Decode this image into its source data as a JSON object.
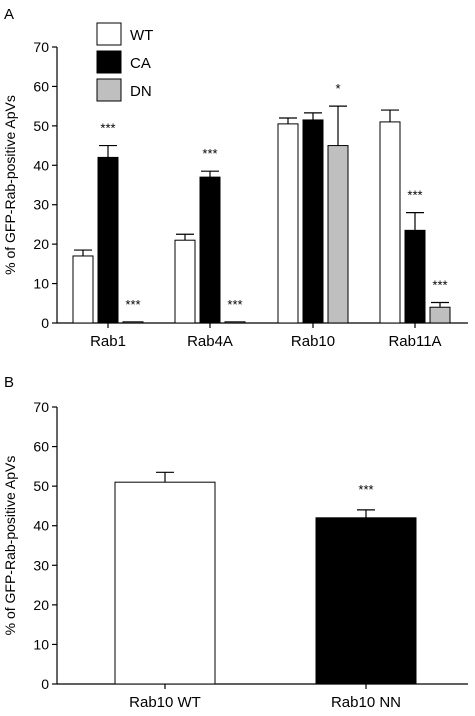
{
  "chart_data": [
    {
      "type": "bar",
      "panel": "A",
      "ylabel": "% of GFP-Rab-positive ApVs",
      "ylim": [
        0,
        70
      ],
      "yticks": [
        0,
        10,
        20,
        30,
        40,
        50,
        60,
        70
      ],
      "categories": [
        "Rab1",
        "Rab4A",
        "Rab10",
        "Rab11A"
      ],
      "legend_position": "top-left",
      "series": [
        {
          "name": "WT",
          "color": "#ffffff",
          "values": [
            17,
            21,
            50.5,
            51
          ],
          "errors": [
            1.5,
            1.5,
            1.5,
            3
          ],
          "significance": [
            "",
            "",
            "",
            ""
          ]
        },
        {
          "name": "CA",
          "color": "#000000",
          "values": [
            42,
            37,
            51.5,
            23.5
          ],
          "errors": [
            3,
            1.5,
            1.8,
            4.5
          ],
          "significance": [
            "***",
            "***",
            "",
            "***"
          ]
        },
        {
          "name": "DN",
          "color": "#bfbfbf",
          "values": [
            0.3,
            0.3,
            45,
            4
          ],
          "errors": [
            0,
            0,
            10,
            1.2
          ],
          "significance": [
            "***",
            "***",
            "*",
            "***"
          ]
        }
      ]
    },
    {
      "type": "bar",
      "panel": "B",
      "ylabel": "% of GFP-Rab-positive ApVs",
      "ylim": [
        0,
        70
      ],
      "yticks": [
        0,
        10,
        20,
        30,
        40,
        50,
        60,
        70
      ],
      "categories": [
        "Rab10 WT",
        "Rab10 NN"
      ],
      "colors": [
        "#ffffff",
        "#000000"
      ],
      "values": [
        51,
        42
      ],
      "errors": [
        2.5,
        2
      ],
      "significance": [
        "",
        "***"
      ]
    }
  ]
}
